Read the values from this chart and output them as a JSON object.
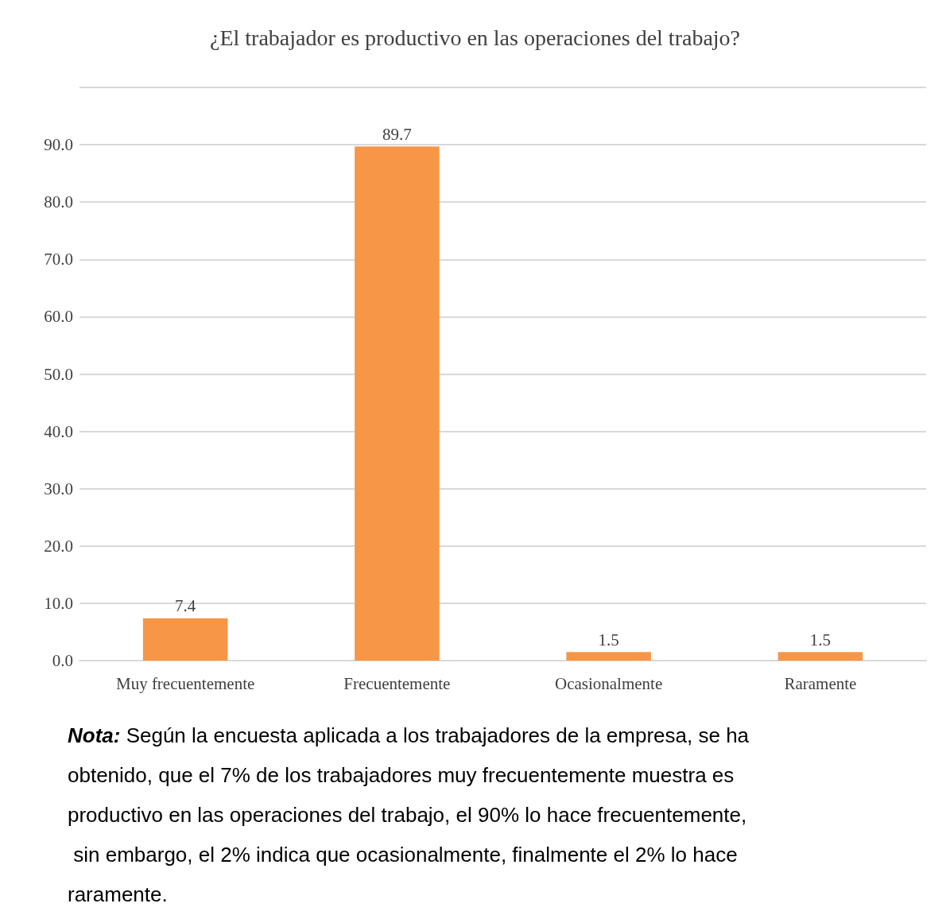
{
  "chart_data": {
    "type": "bar",
    "title": "¿El trabajador es productivo en las operaciones del trabajo?",
    "categories": [
      "Muy frecuentemente",
      "Frecuentemente",
      "Ocasionalmente",
      "Raramente"
    ],
    "values": [
      7.4,
      89.7,
      1.5,
      1.5
    ],
    "color": "#f79646",
    "ylim": [
      0,
      100
    ],
    "yticks": [
      {
        "value": 0,
        "label": "0.0"
      },
      {
        "value": 10,
        "label": "10.0"
      },
      {
        "value": 20,
        "label": "20.0"
      },
      {
        "value": 30,
        "label": "30.0"
      },
      {
        "value": 40,
        "label": "40.0"
      },
      {
        "value": 50,
        "label": "50.0"
      },
      {
        "value": 60,
        "label": "60.0"
      },
      {
        "value": 70,
        "label": "70.0"
      },
      {
        "value": 80,
        "label": "80.0"
      },
      {
        "value": 90,
        "label": "90.0"
      },
      {
        "value": 100,
        "label": null
      }
    ],
    "grid": true,
    "data_labels": true,
    "annotations": [
      "Nota: Según la encuesta aplicada a los trabajadores de la empresa, se ha obtenido, que el 7% de los trabajadores muy frecuentemente muestra es productivo en las operaciones del trabajo, el 90% lo hace frecuentemente, sin embargo, el 2% indica que ocasionalmente, finalmente el 2% lo hace raramente."
    ]
  }
}
